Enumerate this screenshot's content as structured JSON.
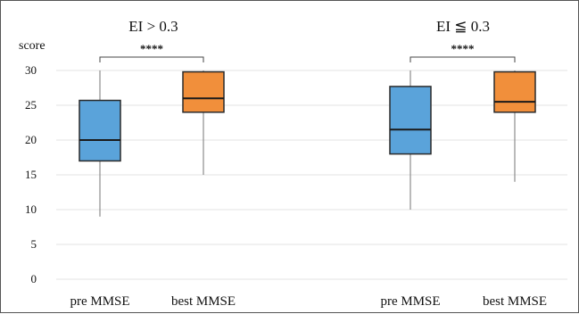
{
  "chart_data": {
    "type": "box",
    "ylabel": "score",
    "ylim": [
      0,
      30
    ],
    "yticks": [
      0,
      5,
      10,
      15,
      20,
      25,
      30
    ],
    "grid": true,
    "colors": {
      "pre MMSE": "#5aa3da",
      "best MMSE": "#f18f3b"
    },
    "panels": [
      {
        "title": "EI > 0.3",
        "significance": "****",
        "boxes": [
          {
            "category": "pre MMSE",
            "min": 9,
            "q1": 17,
            "median": 20,
            "q3": 25.7,
            "max": 30
          },
          {
            "category": "best MMSE",
            "min": 15,
            "q1": 24,
            "median": 26,
            "q3": 29.8,
            "max": 30
          }
        ]
      },
      {
        "title": "EI ≦ 0.3",
        "significance": "****",
        "boxes": [
          {
            "category": "pre MMSE",
            "min": 10,
            "q1": 18,
            "median": 21.5,
            "q3": 27.7,
            "max": 30
          },
          {
            "category": "best MMSE",
            "min": 14,
            "q1": 24,
            "median": 25.5,
            "q3": 29.8,
            "max": 30
          }
        ]
      }
    ]
  }
}
